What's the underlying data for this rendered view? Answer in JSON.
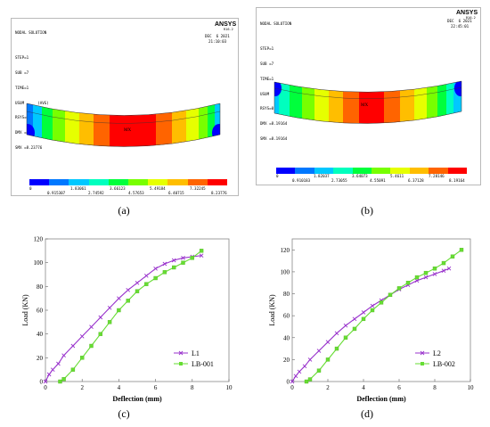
{
  "colors": {
    "contour": [
      "#0000ff",
      "#0078ff",
      "#00c8ff",
      "#00ffbe",
      "#00ff3c",
      "#78ff00",
      "#e6ff00",
      "#ffbe00",
      "#ff6400",
      "#ff0000"
    ],
    "line_l": "#9933cc",
    "line_lb": "#66dd33"
  },
  "panels": {
    "a": {
      "label": "(a)",
      "header_lines": [
        "NODAL SOLUTION",
        "",
        "STEP=1",
        "SUB =7",
        "TIME=1",
        "USUM      (AVG)",
        "RSYS=0",
        "DMX =8.23776",
        "SMX =8.23776"
      ],
      "logo": "ANSYS",
      "logo_sub": "R16.2",
      "date": "DEC  6 2021",
      "time": "21:10:03",
      "legend_top": [
        "0",
        "1.83061",
        "3.66123",
        "5.49184",
        "7.32245"
      ],
      "legend_bottom": [
        "0.915307",
        "2.74592",
        "4.57653",
        "6.40715",
        "8.23776"
      ]
    },
    "b": {
      "label": "(b)",
      "header_lines": [
        "NODAL SOLUTION",
        "",
        "STEP=1",
        "SUB =7",
        "TIME=1",
        "USUM      (AVG)",
        "RSYS=0",
        "DMX =8.19164",
        "SMX =8.19164"
      ],
      "logo": "ANSYS",
      "logo_sub": "R16.2",
      "date": "DEC  6 2021",
      "time": "22:45:01",
      "legend_top": [
        "0",
        "1.82037",
        "3.64073",
        "5.4611",
        "7.28146"
      ],
      "legend_bottom": [
        "0.910183",
        "2.73055",
        "4.55091",
        "6.37128",
        "8.19164"
      ]
    },
    "c": {
      "label": "(c)"
    },
    "d": {
      "label": "(d)"
    }
  },
  "chart_data": [
    {
      "type": "line",
      "xlabel": "Deflection (mm)",
      "ylabel": "Load (KN)",
      "xlim": [
        0,
        10
      ],
      "ylim": [
        0,
        120
      ],
      "xticks": [
        "0",
        "2",
        "4",
        "6",
        "8",
        "10"
      ],
      "yticks": [
        "0",
        "20",
        "40",
        "60",
        "80",
        "100",
        "120"
      ],
      "legend_position": "bottom-right",
      "grid": false,
      "series": [
        {
          "name": "L1",
          "marker": "x",
          "color": "#9933cc",
          "x": [
            0,
            0.2,
            0.4,
            0.7,
            1.0,
            1.5,
            2.0,
            2.5,
            3.0,
            3.5,
            4.0,
            4.5,
            5.0,
            5.5,
            6.0,
            6.5,
            7.0,
            7.5,
            8.0,
            8.5
          ],
          "y": [
            0,
            6,
            10,
            15,
            22,
            30,
            38,
            46,
            54,
            62,
            70,
            77,
            83,
            89,
            95,
            99,
            102,
            104,
            105,
            106
          ]
        },
        {
          "name": "LB-001",
          "marker": "square",
          "color": "#66dd33",
          "x": [
            0.8,
            1.0,
            1.5,
            2.0,
            2.5,
            3.0,
            3.5,
            4.0,
            4.5,
            5.0,
            5.5,
            6.0,
            6.5,
            7.0,
            7.5,
            8.0,
            8.5
          ],
          "y": [
            0,
            2,
            10,
            20,
            30,
            40,
            50,
            60,
            68,
            76,
            82,
            87,
            92,
            96,
            100,
            104,
            110
          ]
        }
      ]
    },
    {
      "type": "line",
      "xlabel": "Deflection (mm)",
      "ylabel": "Load (KN)",
      "xlim": [
        0,
        10
      ],
      "ylim": [
        0,
        130
      ],
      "xticks": [
        "0",
        "2",
        "4",
        "6",
        "8",
        "10"
      ],
      "yticks": [
        "0",
        "20",
        "40",
        "60",
        "80",
        "100",
        "120"
      ],
      "legend_position": "bottom-right",
      "grid": false,
      "series": [
        {
          "name": "L2",
          "marker": "x",
          "color": "#9933cc",
          "x": [
            0,
            0.2,
            0.4,
            0.7,
            1.0,
            1.5,
            2.0,
            2.5,
            3.0,
            3.5,
            4.0,
            4.5,
            5.0,
            5.5,
            6.0,
            6.5,
            7.0,
            7.5,
            8.0,
            8.5,
            8.8
          ],
          "y": [
            0,
            5,
            9,
            14,
            20,
            28,
            36,
            44,
            51,
            57,
            63,
            69,
            74,
            79,
            84,
            88,
            92,
            95,
            98,
            101,
            103
          ]
        },
        {
          "name": "LB-002",
          "marker": "square",
          "color": "#66dd33",
          "x": [
            0.8,
            1.0,
            1.5,
            2.0,
            2.5,
            3.0,
            3.5,
            4.0,
            4.5,
            5.0,
            5.5,
            6.0,
            6.5,
            7.0,
            7.5,
            8.0,
            8.5,
            9.0,
            9.5
          ],
          "y": [
            0,
            2,
            10,
            20,
            30,
            40,
            48,
            57,
            65,
            72,
            79,
            85,
            90,
            95,
            99,
            103,
            108,
            114,
            120
          ]
        }
      ]
    }
  ]
}
